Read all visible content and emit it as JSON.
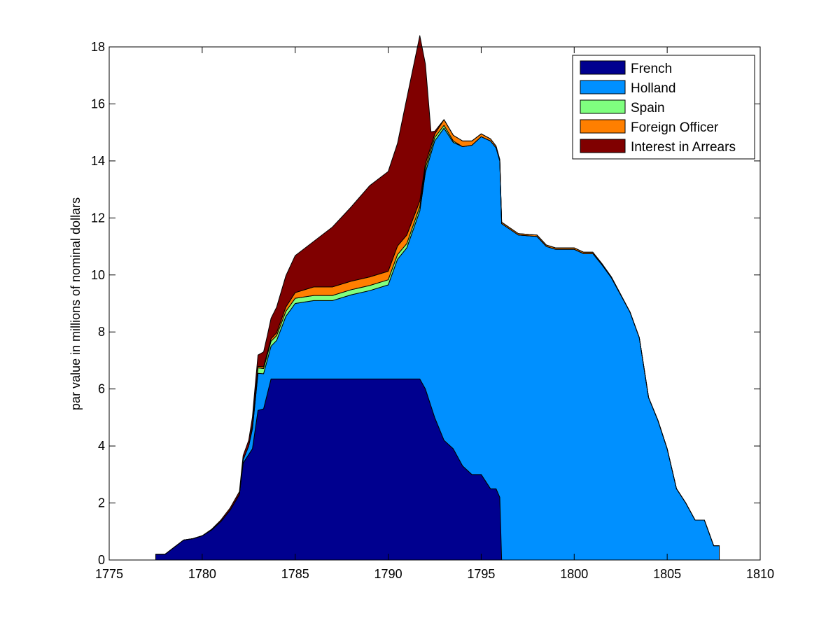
{
  "chart_data": {
    "type": "area",
    "stacked": true,
    "title": "",
    "xlabel": "",
    "ylabel": "par value in millions of nominal dollars",
    "xlim": [
      1775,
      1810
    ],
    "ylim": [
      0,
      18
    ],
    "x_ticks": [
      1775,
      1780,
      1785,
      1790,
      1795,
      1800,
      1805,
      1810
    ],
    "y_ticks": [
      0,
      2,
      4,
      6,
      8,
      10,
      12,
      14,
      16,
      18
    ],
    "grid": false,
    "legend_position": "top-right",
    "series": [
      {
        "name": "French",
        "color": "#00008f",
        "points": [
          [
            1777.5,
            0.2
          ],
          [
            1778.0,
            0.2
          ],
          [
            1778.5,
            0.45
          ],
          [
            1779.0,
            0.7
          ],
          [
            1779.5,
            0.75
          ],
          [
            1780.0,
            0.85
          ],
          [
            1780.5,
            1.05
          ],
          [
            1781.0,
            1.35
          ],
          [
            1781.5,
            1.75
          ],
          [
            1782.0,
            2.3
          ],
          [
            1782.2,
            3.4
          ],
          [
            1782.7,
            3.9
          ],
          [
            1783.0,
            5.25
          ],
          [
            1783.3,
            5.3
          ],
          [
            1783.7,
            6.35
          ],
          [
            1791.7,
            6.35
          ],
          [
            1792.0,
            6.0
          ],
          [
            1792.5,
            5.0
          ],
          [
            1793.0,
            4.2
          ],
          [
            1793.5,
            3.9
          ],
          [
            1794.0,
            3.3
          ],
          [
            1794.5,
            3.0
          ],
          [
            1795.0,
            3.0
          ],
          [
            1795.5,
            2.5
          ],
          [
            1795.8,
            2.5
          ],
          [
            1796.0,
            2.2
          ],
          [
            1796.1,
            0
          ],
          [
            1807.8,
            0
          ]
        ]
      },
      {
        "name": "Holland",
        "color": "#0090ff",
        "points": [
          [
            1777.5,
            0
          ],
          [
            1782.0,
            0
          ],
          [
            1782.5,
            0.3
          ],
          [
            1783.0,
            1.3
          ],
          [
            1783.7,
            1.15
          ],
          [
            1784.0,
            1.35
          ],
          [
            1784.5,
            2.2
          ],
          [
            1785.0,
            2.65
          ],
          [
            1786.0,
            2.75
          ],
          [
            1787.0,
            2.75
          ],
          [
            1788.0,
            2.95
          ],
          [
            1789.0,
            3.1
          ],
          [
            1790.0,
            3.3
          ],
          [
            1790.5,
            4.2
          ],
          [
            1791.0,
            4.6
          ],
          [
            1791.7,
            5.9
          ],
          [
            1792.0,
            7.6
          ],
          [
            1792.5,
            9.7
          ],
          [
            1793.0,
            10.95
          ],
          [
            1793.5,
            10.75
          ],
          [
            1794.0,
            11.2
          ],
          [
            1794.5,
            11.55
          ],
          [
            1795.0,
            11.85
          ],
          [
            1795.5,
            12.2
          ],
          [
            1796.0,
            11.8
          ],
          [
            1796.1,
            11.8
          ],
          [
            1797.0,
            11.4
          ],
          [
            1798.0,
            11.35
          ],
          [
            1798.5,
            11.0
          ],
          [
            1799.0,
            10.9
          ],
          [
            1800.0,
            10.9
          ],
          [
            1800.5,
            10.75
          ],
          [
            1801.0,
            10.75
          ],
          [
            1801.5,
            10.35
          ],
          [
            1802.0,
            9.9
          ],
          [
            1802.5,
            9.3
          ],
          [
            1803.0,
            8.7
          ],
          [
            1803.5,
            7.8
          ],
          [
            1804.0,
            5.7
          ],
          [
            1804.5,
            4.9
          ],
          [
            1805.0,
            3.9
          ],
          [
            1805.5,
            2.5
          ],
          [
            1806.0,
            2.0
          ],
          [
            1806.5,
            1.4
          ],
          [
            1807.0,
            1.4
          ],
          [
            1807.5,
            0.5
          ],
          [
            1807.8,
            0.5
          ]
        ]
      },
      {
        "name": "Spain",
        "color": "#7fff7f",
        "points": [
          [
            1777.5,
            0
          ],
          [
            1782.5,
            0
          ],
          [
            1782.8,
            0.2
          ],
          [
            1783.3,
            0.18
          ],
          [
            1784.0,
            0.17
          ],
          [
            1785.0,
            0.18
          ],
          [
            1786.0,
            0.18
          ],
          [
            1787.0,
            0.18
          ],
          [
            1788.0,
            0.18
          ],
          [
            1789.0,
            0.18
          ],
          [
            1790.0,
            0.18
          ],
          [
            1791.0,
            0.15
          ],
          [
            1791.7,
            0.15
          ],
          [
            1792.0,
            0.15
          ],
          [
            1792.5,
            0.12
          ],
          [
            1793.0,
            0.1
          ],
          [
            1793.5,
            0.05
          ],
          [
            1794.0,
            0
          ],
          [
            1807.8,
            0
          ]
        ]
      },
      {
        "name": "Foreign Officer",
        "color": "#ff7f00",
        "points": [
          [
            1777.5,
            0
          ],
          [
            1782.8,
            0
          ],
          [
            1783.0,
            0.05
          ],
          [
            1784.0,
            0.1
          ],
          [
            1785.0,
            0.2
          ],
          [
            1786.0,
            0.3
          ],
          [
            1787.0,
            0.3
          ],
          [
            1788.0,
            0.3
          ],
          [
            1789.0,
            0.3
          ],
          [
            1790.0,
            0.3
          ],
          [
            1791.0,
            0.3
          ],
          [
            1792.0,
            0.15
          ],
          [
            1792.5,
            0.12
          ],
          [
            1793.0,
            0.2
          ],
          [
            1794.0,
            0.2
          ],
          [
            1795.0,
            0.1
          ],
          [
            1796.0,
            0.05
          ],
          [
            1797.0,
            0.05
          ],
          [
            1798.0,
            0.05
          ],
          [
            1799.0,
            0.05
          ],
          [
            1800.0,
            0.05
          ],
          [
            1801.0,
            0.05
          ],
          [
            1802.0,
            0.03
          ],
          [
            1803.0,
            0
          ],
          [
            1807.8,
            0
          ]
        ]
      },
      {
        "name": "Interest in Arrears",
        "color": "#800000",
        "points": [
          [
            1777.5,
            0
          ],
          [
            1780.0,
            0
          ],
          [
            1781.0,
            0.05
          ],
          [
            1782.0,
            0.1
          ],
          [
            1782.5,
            0.2
          ],
          [
            1783.0,
            0.4
          ],
          [
            1783.5,
            0.6
          ],
          [
            1784.0,
            0.9
          ],
          [
            1785.0,
            1.3
          ],
          [
            1786.0,
            1.6
          ],
          [
            1787.0,
            2.1
          ],
          [
            1788.0,
            2.6
          ],
          [
            1789.0,
            3.2
          ],
          [
            1790.0,
            3.5
          ],
          [
            1790.5,
            3.6
          ],
          [
            1791.0,
            4.8
          ],
          [
            1791.7,
            5.8
          ],
          [
            1792.0,
            3.5
          ],
          [
            1792.3,
            0.5
          ],
          [
            1792.5,
            0.1
          ],
          [
            1793.0,
            0
          ],
          [
            1807.8,
            0
          ]
        ]
      }
    ]
  }
}
